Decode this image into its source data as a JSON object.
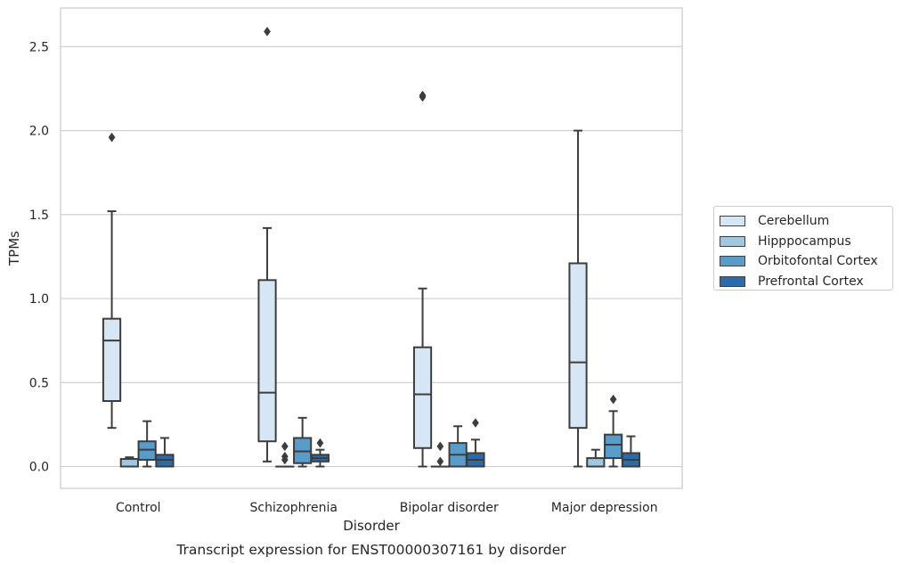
{
  "chart_data": {
    "type": "box",
    "title": "",
    "caption": "Transcript expression for ENST00000307161 by disorder",
    "xlabel": "Disorder",
    "ylabel": "TPMs",
    "ylim": [
      -0.13,
      2.73
    ],
    "yticks": [
      "0.0",
      "0.5",
      "1.0",
      "1.5",
      "2.0",
      "2.5"
    ],
    "ytick_values": [
      0,
      0.5,
      1.0,
      1.5,
      2.0,
      2.5
    ],
    "grid": "horizontal",
    "legend_position": "right",
    "categories": [
      "Control",
      "Schizophrenia",
      "Bipolar disorder",
      "Major depression"
    ],
    "series": [
      {
        "name": "Cerebellum",
        "color": "#d6e6f4",
        "boxes": [
          {
            "whisker_low": 0.23,
            "q1": 0.39,
            "median": 0.75,
            "q3": 0.88,
            "whisker_high": 1.52,
            "outliers": [
              1.96
            ]
          },
          {
            "whisker_low": 0.03,
            "q1": 0.15,
            "median": 0.44,
            "q3": 1.11,
            "whisker_high": 1.42,
            "outliers": [
              2.59
            ]
          },
          {
            "whisker_low": 0.0,
            "q1": 0.11,
            "median": 0.43,
            "q3": 0.71,
            "whisker_high": 1.06,
            "outliers": [
              2.2,
              2.21
            ]
          },
          {
            "whisker_low": 0.0,
            "q1": 0.23,
            "median": 0.62,
            "q3": 1.21,
            "whisker_high": 2.0,
            "outliers": []
          }
        ]
      },
      {
        "name": "Hipppocampus",
        "color": "#a0c8e0",
        "boxes": [
          {
            "whisker_low": 0.0,
            "q1": 0.0,
            "median": 0.0,
            "q3": 0.045,
            "whisker_high": 0.055,
            "outliers": []
          },
          {
            "whisker_low": 0.0,
            "q1": 0.0,
            "median": 0.0,
            "q3": 0.0,
            "whisker_high": 0.0,
            "outliers": [
              0.04,
              0.06,
              0.12
            ]
          },
          {
            "whisker_low": 0.0,
            "q1": 0.0,
            "median": 0.0,
            "q3": 0.0,
            "whisker_high": 0.0,
            "outliers": [
              0.03,
              0.12
            ]
          },
          {
            "whisker_low": 0.0,
            "q1": 0.0,
            "median": 0.0,
            "q3": 0.05,
            "whisker_high": 0.1,
            "outliers": []
          }
        ]
      },
      {
        "name": "Orbitofontal Cortex",
        "color": "#5a9cc9",
        "boxes": [
          {
            "whisker_low": 0.0,
            "q1": 0.04,
            "median": 0.1,
            "q3": 0.15,
            "whisker_high": 0.27,
            "outliers": []
          },
          {
            "whisker_low": 0.0,
            "q1": 0.02,
            "median": 0.09,
            "q3": 0.17,
            "whisker_high": 0.29,
            "outliers": []
          },
          {
            "whisker_low": 0.0,
            "q1": 0.0,
            "median": 0.07,
            "q3": 0.14,
            "whisker_high": 0.24,
            "outliers": []
          },
          {
            "whisker_low": 0.0,
            "q1": 0.05,
            "median": 0.13,
            "q3": 0.19,
            "whisker_high": 0.33,
            "outliers": [
              0.4
            ]
          }
        ]
      },
      {
        "name": "Prefrontal Cortex",
        "color": "#2d6aa8",
        "boxes": [
          {
            "whisker_low": 0.0,
            "q1": 0.0,
            "median": 0.04,
            "q3": 0.07,
            "whisker_high": 0.17,
            "outliers": []
          },
          {
            "whisker_low": 0.0,
            "q1": 0.03,
            "median": 0.05,
            "q3": 0.07,
            "whisker_high": 0.1,
            "outliers": [
              0.14
            ]
          },
          {
            "whisker_low": 0.0,
            "q1": 0.0,
            "median": 0.04,
            "q3": 0.08,
            "whisker_high": 0.16,
            "outliers": [
              0.26
            ]
          },
          {
            "whisker_low": 0.0,
            "q1": 0.0,
            "median": 0.04,
            "q3": 0.08,
            "whisker_high": 0.18,
            "outliers": []
          }
        ]
      }
    ]
  }
}
